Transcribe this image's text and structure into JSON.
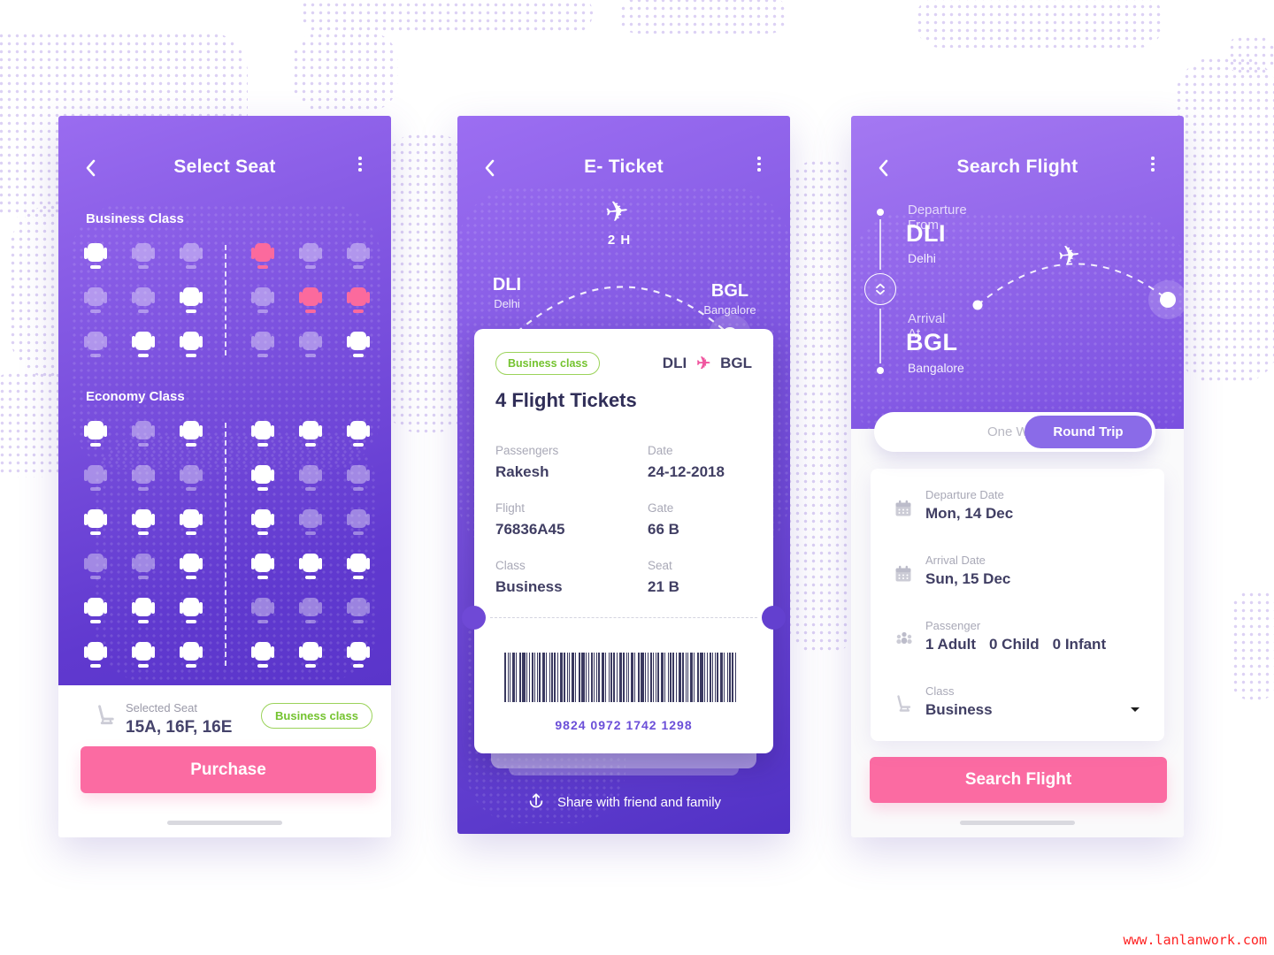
{
  "colors": {
    "accent_pink": "#fb6ba2",
    "seat_selected_pink": "#fb6a9d",
    "badge_green": "#74c32f",
    "toggle_purple": "#8a6be8",
    "gradient_top": "#9c6ef2",
    "gradient_bottom": "#5131c5"
  },
  "select_seat": {
    "title": "Select Seat",
    "business_label": "Business Class",
    "economy_label": "Economy Class",
    "business_rows": [
      [
        "a",
        "u",
        "u",
        "s",
        "u",
        "u"
      ],
      [
        "u",
        "u",
        "a",
        "u",
        "s",
        "s"
      ],
      [
        "u",
        "a",
        "a",
        "u",
        "u",
        "a"
      ]
    ],
    "economy_rows": [
      [
        "a",
        "u",
        "a",
        "a",
        "a",
        "a"
      ],
      [
        "u",
        "u",
        "u",
        "a",
        "u",
        "u"
      ],
      [
        "a",
        "a",
        "a",
        "a",
        "u",
        "u"
      ],
      [
        "u",
        "u",
        "a",
        "a",
        "a",
        "a"
      ],
      [
        "a",
        "a",
        "a",
        "u",
        "u",
        "u"
      ],
      [
        "a",
        "a",
        "a",
        "a",
        "a",
        "a"
      ]
    ],
    "selected_seat_label": "Selected Seat",
    "selected_seats": "15A, 16F, 16E",
    "class_badge": "Business class",
    "purchase_label": "Purchase"
  },
  "eticket": {
    "title": "E- Ticket",
    "duration": "2 H",
    "from": {
      "code": "DLI",
      "city": "Delhi"
    },
    "to": {
      "code": "BGL",
      "city": "Bangalore"
    },
    "card": {
      "class_badge": "Business class",
      "route_from": "DLI",
      "route_to": "BGL",
      "heading": "4 Flight Tickets",
      "fields": [
        {
          "label": "Passengers",
          "value": "Rakesh"
        },
        {
          "label": "Date",
          "value": "24-12-2018"
        },
        {
          "label": "Flight",
          "value": "76836A45"
        },
        {
          "label": "Gate",
          "value": "66 B"
        },
        {
          "label": "Class",
          "value": "Business"
        },
        {
          "label": "Seat",
          "value": "21 B"
        }
      ],
      "barcode_number": "9824 0972 1742 1298"
    },
    "share_label": "Share with friend and family"
  },
  "search_flight": {
    "title": "Search Flight",
    "departure_label": "Departure From",
    "departure_code": "DLI",
    "departure_city": "Delhi",
    "arrival_label": "Arrival At",
    "arrival_code": "BGL",
    "arrival_city": "Bangalore",
    "trip_options": [
      {
        "label": "One Way",
        "selected": false
      },
      {
        "label": "Round Trip",
        "selected": true
      }
    ],
    "form_rows": [
      {
        "icon": "calendar-icon",
        "label": "Departure Date",
        "value": "Mon, 14 Dec"
      },
      {
        "icon": "calendar-icon",
        "label": "Arrival Date",
        "value": "Sun, 15 Dec"
      },
      {
        "icon": "passengers-icon",
        "label": "Passenger",
        "value_parts": [
          "1 Adult",
          "0 Child",
          "0 Infant"
        ]
      },
      {
        "icon": "seat-icon",
        "label": "Class",
        "value": "Business",
        "has_dropdown": true
      }
    ],
    "search_label": "Search Flight"
  },
  "watermark": "www.lanlanwork.com"
}
